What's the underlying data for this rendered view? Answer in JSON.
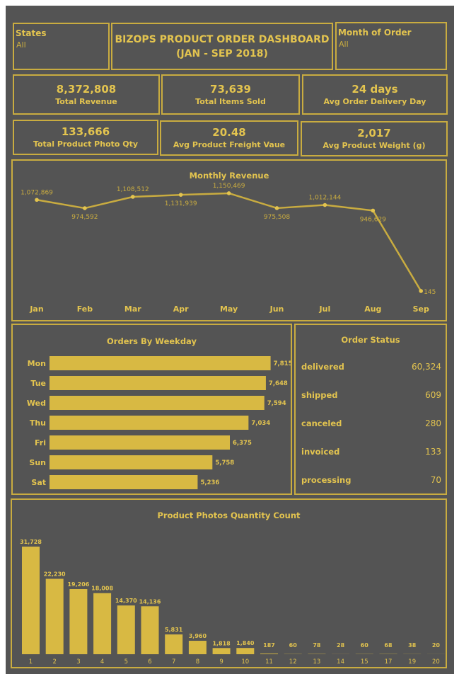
{
  "filters": {
    "states": {
      "label": "States",
      "value": "All"
    },
    "month": {
      "label": "Month of Order",
      "value": "All"
    }
  },
  "dashboard": {
    "title_line1": "BIZOPS PRODUCT ORDER DASHBOARD",
    "title_line2": "(JAN - SEP 2018)"
  },
  "kpis": [
    {
      "value": "8,372,808",
      "label": "Total Revenue"
    },
    {
      "value": "73,639",
      "label": "Total Items Sold"
    },
    {
      "value": "24 days",
      "label": "Avg Order Delivery Day"
    },
    {
      "value": "133,666",
      "label": "Total Product Photo Qty"
    },
    {
      "value": "20.48",
      "label": "Avg Product Freight Vaue"
    },
    {
      "value": "2,017",
      "label": "Avg Product Weight (g)"
    }
  ],
  "order_status": {
    "title": "Order Status",
    "rows": [
      {
        "label": "delivered",
        "value": "60,324"
      },
      {
        "label": "shipped",
        "value": "609"
      },
      {
        "label": "canceled",
        "value": "280"
      },
      {
        "label": "invoiced",
        "value": "133"
      },
      {
        "label": "processing",
        "value": "70"
      }
    ]
  },
  "colors": {
    "accent": "#c9ac40",
    "text": "#e3c44f",
    "background": "#545454",
    "bar": "#d8b943"
  },
  "chart_data": [
    {
      "type": "line",
      "title": "Monthly Revenue",
      "categories": [
        "Jan",
        "Feb",
        "Mar",
        "Apr",
        "May",
        "Jun",
        "Jul",
        "Aug",
        "Sep"
      ],
      "values": [
        1072869,
        974592,
        1108512,
        1131939,
        1150469,
        975508,
        1012144,
        946629,
        145
      ],
      "value_labels": [
        "1,072,869",
        "974,592",
        "1,108,512",
        "1,131,939",
        "1,150,469",
        "975,508",
        "1,012,144",
        "946,629",
        "145"
      ],
      "ylim": [
        0,
        1200000
      ],
      "grid": false
    },
    {
      "type": "bar",
      "orientation": "horizontal",
      "title": "Orders By Weekday",
      "categories": [
        "Mon",
        "Tue",
        "Wed",
        "Thu",
        "Fri",
        "Sun",
        "Sat"
      ],
      "values": [
        7815,
        7648,
        7594,
        7034,
        6375,
        5758,
        5236
      ],
      "value_labels": [
        "7,815",
        "7,648",
        "7,594",
        "7,034",
        "6,375",
        "5,758",
        "5,236"
      ],
      "xlim": [
        0,
        8400
      ]
    },
    {
      "type": "bar",
      "title": "Product Photos Quantity Count",
      "categories": [
        "1",
        "2",
        "3",
        "4",
        "5",
        "6",
        "7",
        "8",
        "9",
        "10",
        "11",
        "12",
        "13",
        "14",
        "15",
        "17",
        "19",
        "20"
      ],
      "values": [
        31728,
        22230,
        19206,
        18008,
        14370,
        14136,
        5831,
        3960,
        1818,
        1840,
        187,
        60,
        78,
        28,
        60,
        68,
        38,
        20
      ],
      "value_labels": [
        "31,728",
        "22,230",
        "19,206",
        "18,008",
        "14,370",
        "14,136",
        "5,831",
        "3,960",
        "1,818",
        "1,840",
        "187",
        "60",
        "78",
        "28",
        "60",
        "68",
        "38",
        "20"
      ],
      "ylim": [
        0,
        31728
      ]
    }
  ]
}
